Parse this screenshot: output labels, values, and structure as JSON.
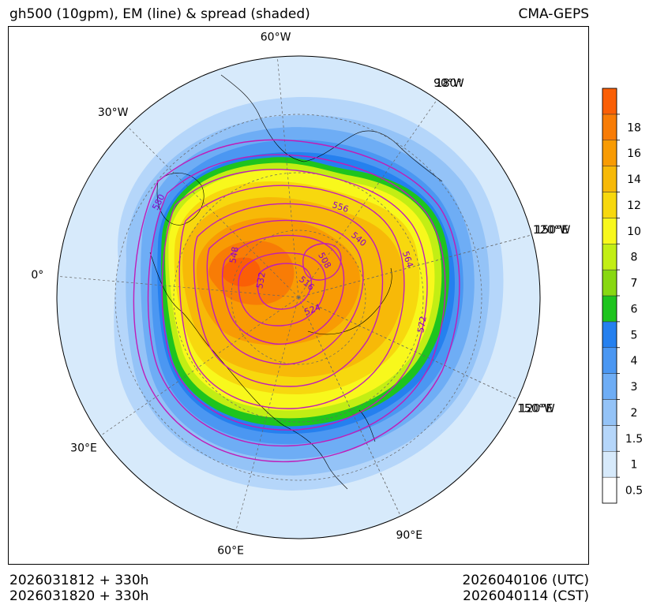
{
  "header": {
    "title": "gh500 (10gpm), EM (line) & spread (shaded)",
    "model": "CMA-GEPS"
  },
  "footer": {
    "init_utc": "2026031812 + 330h",
    "init_cst": "2026031820 + 330h",
    "valid_utc": "2026040106 (UTC)",
    "valid_cst": "2026040114 (CST)"
  },
  "map": {
    "projection": "north-polar-stereographic",
    "longitude_labels": [
      {
        "label": "60°W",
        "lon": -60
      },
      {
        "label": "90°W",
        "lon": -90
      },
      {
        "label": "30°W",
        "lon": -30
      },
      {
        "label": "120°W",
        "lon": -120
      },
      {
        "label": "0°",
        "lon": 0
      },
      {
        "label": "150°W",
        "lon": -150
      },
      {
        "label": "30°E",
        "lon": 30
      },
      {
        "label": "180°",
        "lon": 180
      },
      {
        "label": "60°E",
        "lon": 60
      },
      {
        "label": "150°E",
        "lon": 150
      },
      {
        "label": "90°E",
        "lon": 90
      },
      {
        "label": "120°E",
        "lon": 120
      }
    ],
    "contour_labels": [
      "580",
      "556",
      "548",
      "540",
      "532",
      "508",
      "564",
      "516",
      "524",
      "572"
    ]
  },
  "colorbar": {
    "levels": [
      "0.5",
      "1",
      "1.5",
      "2",
      "3",
      "4",
      "5",
      "6",
      "7",
      "8",
      "10",
      "12",
      "14",
      "16",
      "18"
    ],
    "colors": [
      "#ffffff",
      "#d7eafb",
      "#b5d6fa",
      "#94c3f7",
      "#6eadf5",
      "#4b97f2",
      "#2580ef",
      "#1ec41e",
      "#88d812",
      "#c2ee14",
      "#f8f81c",
      "#f7d80e",
      "#f7b908",
      "#f89b04",
      "#f87c06",
      "#fa5f06"
    ]
  },
  "palette": {
    "contour": "#c01cb8",
    "contour_label": "#8a00c8",
    "coast": "#000000",
    "grid": "#666666"
  }
}
